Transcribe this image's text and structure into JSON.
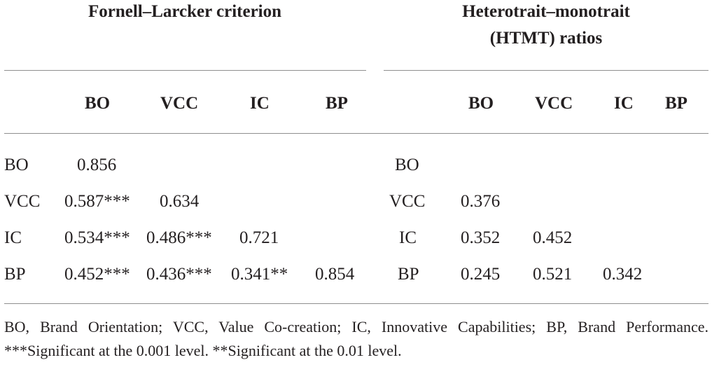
{
  "table": {
    "sections": {
      "left_title": "Fornell–Larcker criterion",
      "right_title_line1": "Heterotrait–monotrait",
      "right_title_line2": "(HTMT) ratios"
    },
    "columns": [
      "BO",
      "VCC",
      "IC",
      "BP"
    ],
    "left_rows": [
      {
        "label": "BO",
        "values": [
          "0.856",
          "",
          "",
          ""
        ]
      },
      {
        "label": "VCC",
        "values": [
          "0.587***",
          "0.634",
          "",
          ""
        ]
      },
      {
        "label": "IC",
        "values": [
          "0.534***",
          "0.486***",
          "0.721",
          ""
        ]
      },
      {
        "label": "BP",
        "values": [
          "0.452***",
          "0.436***",
          "0.341**",
          "0.854"
        ]
      }
    ],
    "right_rows": [
      {
        "label": "BO",
        "values": [
          "",
          "",
          "",
          ""
        ]
      },
      {
        "label": "VCC",
        "values": [
          "0.376",
          "",
          "",
          ""
        ]
      },
      {
        "label": "IC",
        "values": [
          "0.352",
          "0.452",
          "",
          ""
        ]
      },
      {
        "label": "BP",
        "values": [
          "0.245",
          "0.521",
          "0.342",
          ""
        ]
      }
    ],
    "footnote": "BO, Brand Orientation; VCC, Value Co-creation; IC, Innovative Capabilities; BP, Brand Performance. ***Significant at the 0.001 level. **Significant at the 0.01 level."
  }
}
